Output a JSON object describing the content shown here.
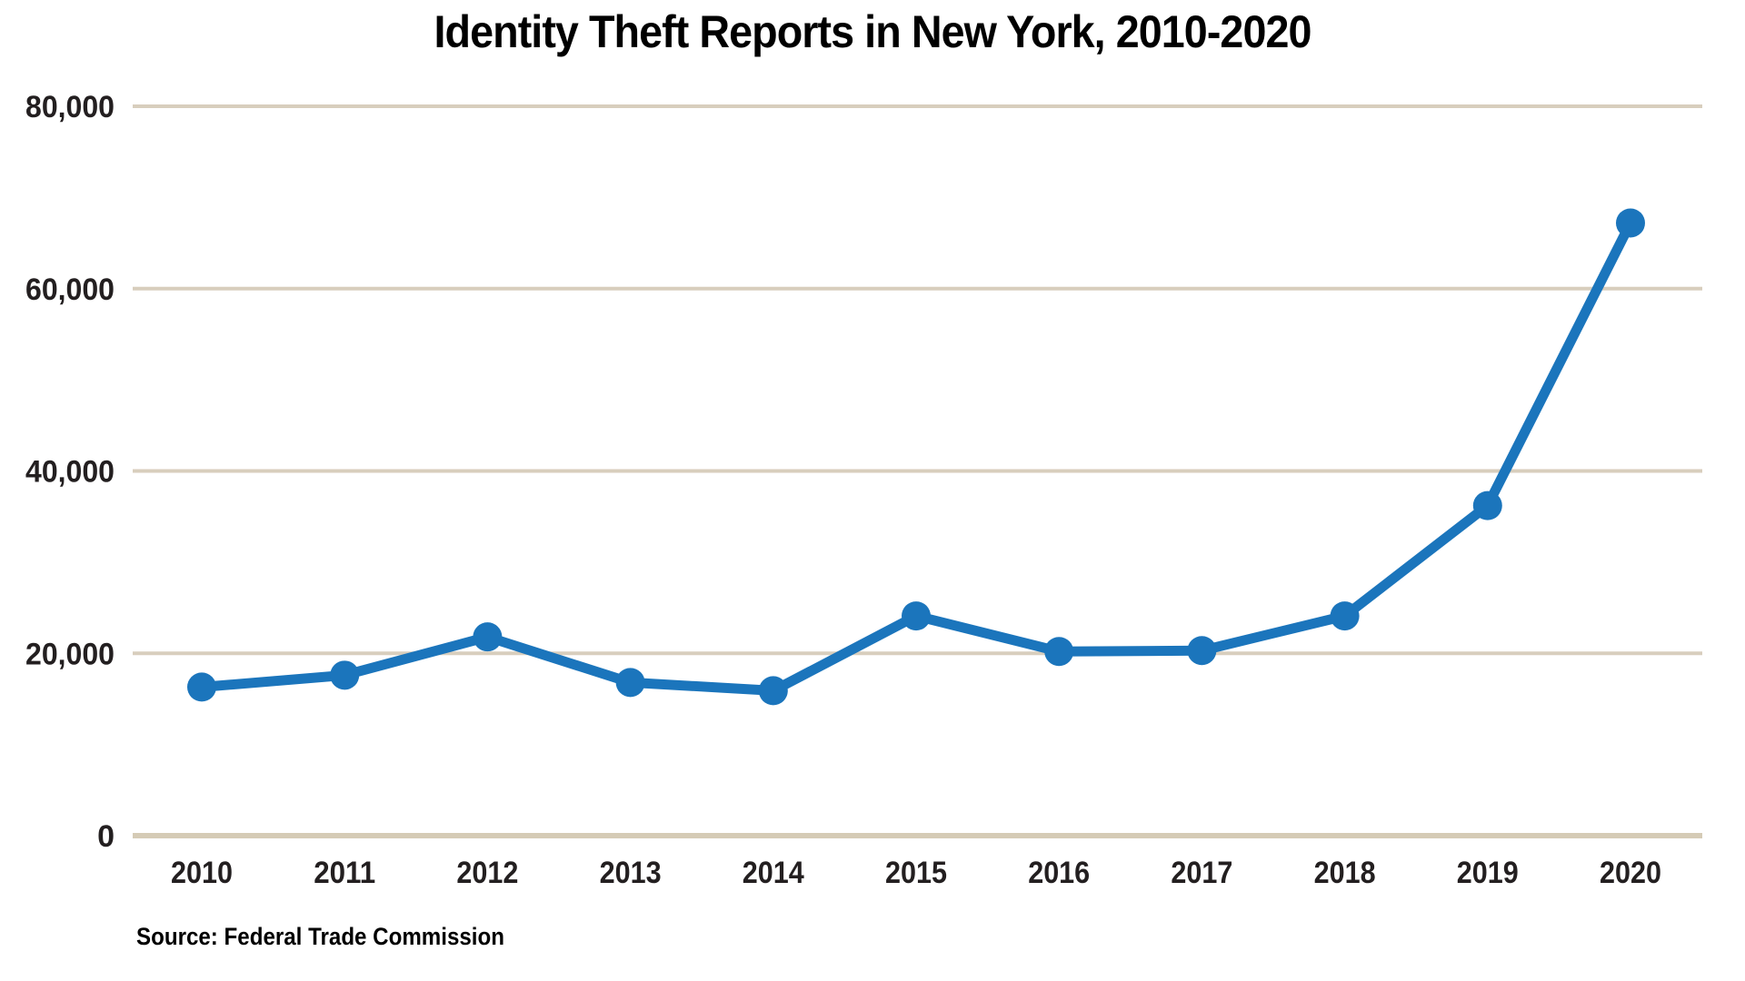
{
  "chart_data": {
    "type": "line",
    "title": "Identity Theft Reports in New York, 2010-2020",
    "source": "Source: Federal Trade Commission",
    "categories": [
      "2010",
      "2011",
      "2012",
      "2013",
      "2014",
      "2015",
      "2016",
      "2017",
      "2018",
      "2019",
      "2020"
    ],
    "series": [
      {
        "name": "Identity theft reports",
        "values": [
          16300,
          17600,
          21800,
          16800,
          15900,
          24100,
          20200,
          20300,
          24100,
          36200,
          67200
        ]
      }
    ],
    "xlabel": "",
    "ylabel": "",
    "ylim": [
      0,
      80000
    ],
    "yticks": [
      0,
      20000,
      40000,
      60000,
      80000
    ],
    "ytick_labels": [
      "0",
      "20,000",
      "40,000",
      "60,000",
      "80,000"
    ],
    "grid": "horizontal",
    "legend": "none",
    "marker": "circle",
    "colors": {
      "line": "#1b75bc",
      "marker": "#1b75bc",
      "gridline": "#d8cebd",
      "baseline": "#d5cbb6",
      "text": "#231f20",
      "background": "#ffffff"
    }
  }
}
